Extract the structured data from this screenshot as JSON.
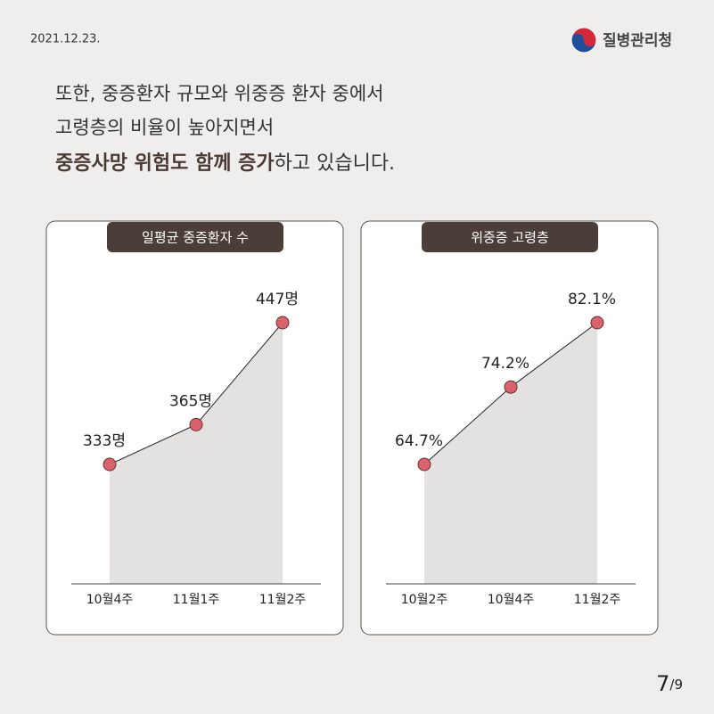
{
  "header": {
    "date": "2021.12.23.",
    "org": "질병관리청"
  },
  "headline": {
    "line1": "또한, 중증환자 규모와 위중증 환자 중에서",
    "line2": "고령층의 비율이 높아지면서",
    "line3_bold": "중증사망 위험도 함께 증가",
    "line3_rest": "하고 있습니다."
  },
  "page": {
    "current": "7",
    "total": "/9"
  },
  "chart_data": [
    {
      "type": "area-line",
      "title": "일평균 중증환자 수",
      "categories": [
        "10월4주",
        "11월1주",
        "11월2주"
      ],
      "values": [
        333,
        365,
        447
      ],
      "value_labels": [
        "333명",
        "365명",
        "447명"
      ],
      "color": "#d9636b",
      "fill": "#e4e2e0"
    },
    {
      "type": "area-line",
      "title": "위중증 고령층",
      "categories": [
        "10월2주",
        "10월4주",
        "11월2주"
      ],
      "values": [
        64.7,
        74.2,
        82.1
      ],
      "value_labels": [
        "64.7%",
        "74.2%",
        "82.1%"
      ],
      "color": "#d9636b",
      "fill": "#e4e2e0"
    }
  ]
}
